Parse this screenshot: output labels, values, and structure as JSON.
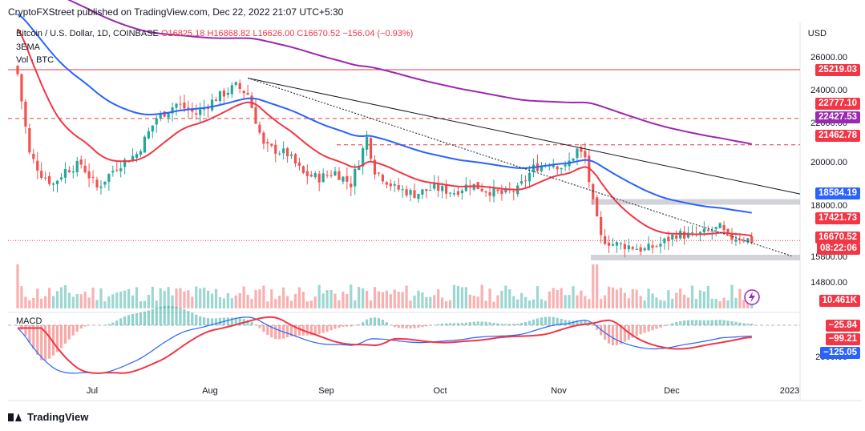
{
  "header": {
    "publisher": "CryptoFXStreet published on TradingView.com, Dec 22, 2022 21:07 UTC+5:30"
  },
  "legend": {
    "symbol": "Bitcoin / U.S. Dollar, 1D, COINBASE",
    "ohlc": "O16825.18 H16868.82 L16626.00 C16670.52 −156.04 (−0.93%)",
    "ema": "3EMA",
    "volume": "Vol · BTC",
    "macd": "MACD"
  },
  "axis": {
    "currency": "USD",
    "y_ticks": [
      "26000.00",
      "24000.00",
      "22000.00",
      "20000.00",
      "18000.00",
      "15800.00",
      "14800.00",
      "2000.00"
    ],
    "x_ticks": [
      "Jul",
      "Aug",
      "Sep",
      "Oct",
      "Nov",
      "Dec",
      "2023"
    ]
  },
  "price_tags": [
    {
      "label": "25219.03",
      "color": "#f23645"
    },
    {
      "label": "22777.10",
      "color": "#f23645"
    },
    {
      "label": "22427.53",
      "color": "#9c27b0"
    },
    {
      "label": "21462.78",
      "color": "#f23645"
    },
    {
      "label": "18584.19",
      "color": "#2962ff"
    },
    {
      "label": "17421.73",
      "color": "#f23645"
    },
    {
      "label": "16670.52",
      "color": "#f23645"
    },
    {
      "label": "08:22:06",
      "color": "#f23645"
    },
    {
      "label": "10.461K",
      "color": "#f23645"
    },
    {
      "label": "−25.84",
      "color": "#f23645"
    },
    {
      "label": "−99.21",
      "color": "#f23645"
    },
    {
      "label": "−125.05",
      "color": "#2962ff"
    }
  ],
  "brand": "TradingView",
  "chart_data": {
    "type": "line",
    "title": "Bitcoin / U.S. Dollar, 1D, COINBASE",
    "x_labels": [
      "Jul",
      "Aug",
      "Sep",
      "Oct",
      "Nov",
      "Dec",
      "2023"
    ],
    "ylim": [
      15000,
      27000
    ],
    "colors": {
      "up": "#26a69a",
      "down": "#ef5350",
      "ema_short": "#f23645",
      "ema_mid": "#2962ff",
      "ema_long": "#9c27b0"
    },
    "close_series": [
      {
        "x": 0,
        "y": 25000
      },
      {
        "x": 3,
        "y": 21000
      },
      {
        "x": 6,
        "y": 20000
      },
      {
        "x": 9,
        "y": 19500
      },
      {
        "x": 12,
        "y": 20200
      },
      {
        "x": 16,
        "y": 20500
      },
      {
        "x": 20,
        "y": 19300
      },
      {
        "x": 25,
        "y": 20400
      },
      {
        "x": 30,
        "y": 21000
      },
      {
        "x": 35,
        "y": 22800
      },
      {
        "x": 40,
        "y": 23500
      },
      {
        "x": 45,
        "y": 23000
      },
      {
        "x": 50,
        "y": 23800
      },
      {
        "x": 55,
        "y": 24400
      },
      {
        "x": 58,
        "y": 24000
      },
      {
        "x": 62,
        "y": 21400
      },
      {
        "x": 68,
        "y": 21000
      },
      {
        "x": 72,
        "y": 20000
      },
      {
        "x": 76,
        "y": 19800
      },
      {
        "x": 80,
        "y": 20100
      },
      {
        "x": 84,
        "y": 19500
      },
      {
        "x": 88,
        "y": 21800
      },
      {
        "x": 90,
        "y": 20200
      },
      {
        "x": 95,
        "y": 19300
      },
      {
        "x": 100,
        "y": 19000
      },
      {
        "x": 105,
        "y": 19300
      },
      {
        "x": 110,
        "y": 19100
      },
      {
        "x": 114,
        "y": 19500
      },
      {
        "x": 118,
        "y": 19200
      },
      {
        "x": 122,
        "y": 19000
      },
      {
        "x": 126,
        "y": 19200
      },
      {
        "x": 130,
        "y": 20300
      },
      {
        "x": 134,
        "y": 20600
      },
      {
        "x": 138,
        "y": 20300
      },
      {
        "x": 141,
        "y": 21200
      },
      {
        "x": 143,
        "y": 20800
      },
      {
        "x": 145,
        "y": 18500
      },
      {
        "x": 147,
        "y": 16800
      },
      {
        "x": 150,
        "y": 16500
      },
      {
        "x": 154,
        "y": 16400
      },
      {
        "x": 158,
        "y": 16200
      },
      {
        "x": 162,
        "y": 16500
      },
      {
        "x": 166,
        "y": 17000
      },
      {
        "x": 170,
        "y": 16900
      },
      {
        "x": 174,
        "y": 17100
      },
      {
        "x": 177,
        "y": 17300
      },
      {
        "x": 179,
        "y": 16800
      },
      {
        "x": 182,
        "y": 16850
      },
      {
        "x": 185,
        "y": 16670.52
      }
    ],
    "series": [
      {
        "name": "EMA (red)",
        "last": 17421.73
      },
      {
        "name": "EMA (blue)",
        "last": 18584.19
      },
      {
        "name": "EMA (purple)",
        "last": 22427.53
      }
    ],
    "levels": [
      25219.03,
      22777.1,
      21462.78,
      18584.19,
      15800.0
    ],
    "last_close": 16670.52,
    "volume_last": "10.461K",
    "macd": {
      "histogram": -25.84,
      "signal": -99.21,
      "macd": -125.05
    }
  }
}
